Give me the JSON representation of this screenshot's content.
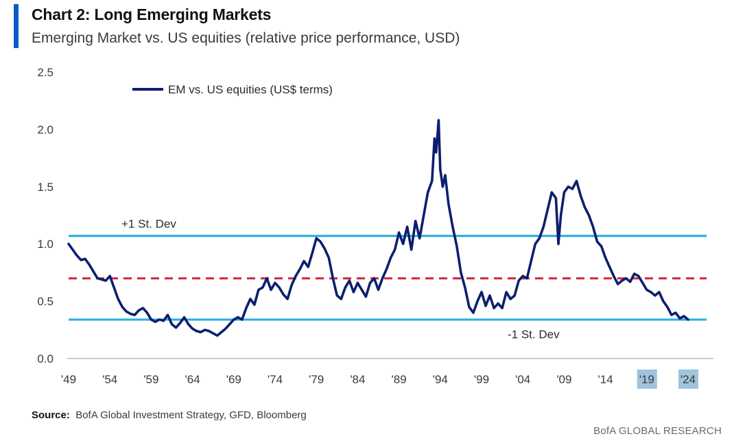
{
  "header": {
    "title": "Chart 2: Long Emerging Markets",
    "subtitle": "Emerging Market vs. US equities (relative price performance, USD)"
  },
  "footer": {
    "source_label": "Source:",
    "source_text": "BofA Global Investment Strategy, GFD, Bloomberg",
    "brand": "BofA GLOBAL RESEARCH"
  },
  "colors": {
    "series": "#0c1f6e",
    "std_dev": "#2eb0e6",
    "mean": "#d2223c",
    "axis": "#666666",
    "highlight": "#9fc4dc",
    "accent": "#0a5ac8"
  },
  "chart_data": {
    "type": "line",
    "title": "Chart 2: Long Emerging Markets",
    "subtitle": "Emerging Market vs. US equities (relative price performance, USD)",
    "xlabel": "",
    "ylabel": "",
    "xlim": [
      1949,
      2024
    ],
    "ylim": [
      0,
      2.5
    ],
    "yticks": [
      0.0,
      0.5,
      1.0,
      1.5,
      2.0,
      2.5
    ],
    "ytick_labels": [
      "0.0",
      "0.5",
      "1.0",
      "1.5",
      "2.0",
      "2.5"
    ],
    "xticks": [
      1949,
      1954,
      1959,
      1964,
      1969,
      1974,
      1979,
      1984,
      1989,
      1994,
      1999,
      2004,
      2009,
      2014,
      2019,
      2024
    ],
    "xtick_labels": [
      "'49",
      "'54",
      "'59",
      "'64",
      "'69",
      "'74",
      "'79",
      "'84",
      "'89",
      "'94",
      "'99",
      "'04",
      "'09",
      "'14",
      "'19",
      "'24"
    ],
    "highlighted_xticks": [
      "'19",
      "'24"
    ],
    "grid": false,
    "legend": {
      "position": "top-left",
      "entries": [
        "EM vs. US equities (US$ terms)"
      ]
    },
    "series": [
      {
        "name": "EM vs. US equities (US$ terms)",
        "x": [
          1949.0,
          1949.5,
          1950.0,
          1950.5,
          1951.0,
          1951.5,
          1952.0,
          1952.5,
          1953.0,
          1953.5,
          1954.0,
          1954.5,
          1955.0,
          1955.5,
          1956.0,
          1956.5,
          1957.0,
          1957.5,
          1958.0,
          1958.5,
          1959.0,
          1959.5,
          1960.0,
          1960.5,
          1961.0,
          1961.5,
          1962.0,
          1962.5,
          1963.0,
          1963.5,
          1964.0,
          1964.5,
          1965.0,
          1965.5,
          1966.0,
          1966.5,
          1967.0,
          1967.5,
          1968.0,
          1968.5,
          1969.0,
          1969.5,
          1970.0,
          1970.5,
          1971.0,
          1971.5,
          1972.0,
          1972.5,
          1973.0,
          1973.5,
          1974.0,
          1974.5,
          1975.0,
          1975.5,
          1976.0,
          1976.5,
          1977.0,
          1977.5,
          1978.0,
          1978.5,
          1979.0,
          1979.5,
          1980.0,
          1980.5,
          1981.0,
          1981.5,
          1982.0,
          1982.5,
          1983.0,
          1983.5,
          1984.0,
          1984.5,
          1985.0,
          1985.5,
          1986.0,
          1986.5,
          1987.0,
          1987.5,
          1988.0,
          1988.5,
          1989.0,
          1989.5,
          1990.0,
          1990.5,
          1991.0,
          1991.5,
          1992.0,
          1992.5,
          1993.0,
          1993.3,
          1993.5,
          1993.8,
          1994.0,
          1994.3,
          1994.6,
          1995.0,
          1995.5,
          1996.0,
          1996.5,
          1997.0,
          1997.5,
          1998.0,
          1998.5,
          1999.0,
          1999.5,
          2000.0,
          2000.5,
          2001.0,
          2001.5,
          2002.0,
          2002.5,
          2003.0,
          2003.5,
          2004.0,
          2004.5,
          2005.0,
          2005.5,
          2006.0,
          2006.5,
          2007.0,
          2007.5,
          2008.0,
          2008.3,
          2008.6,
          2009.0,
          2009.5,
          2010.0,
          2010.5,
          2011.0,
          2011.5,
          2012.0,
          2012.5,
          2013.0,
          2013.5,
          2014.0,
          2014.5,
          2015.0,
          2015.5,
          2016.0,
          2016.5,
          2017.0,
          2017.5,
          2018.0,
          2018.5,
          2019.0,
          2019.5,
          2020.0,
          2020.5,
          2021.0,
          2021.5,
          2022.0,
          2022.5,
          2023.0,
          2023.5,
          2024.0
        ],
        "values": [
          1.0,
          0.95,
          0.9,
          0.86,
          0.87,
          0.82,
          0.76,
          0.7,
          0.69,
          0.68,
          0.72,
          0.62,
          0.52,
          0.45,
          0.41,
          0.39,
          0.38,
          0.42,
          0.44,
          0.4,
          0.34,
          0.32,
          0.34,
          0.33,
          0.38,
          0.3,
          0.27,
          0.31,
          0.36,
          0.3,
          0.26,
          0.24,
          0.23,
          0.25,
          0.24,
          0.22,
          0.2,
          0.23,
          0.26,
          0.3,
          0.34,
          0.36,
          0.34,
          0.44,
          0.52,
          0.47,
          0.6,
          0.62,
          0.7,
          0.6,
          0.66,
          0.62,
          0.56,
          0.52,
          0.64,
          0.72,
          0.78,
          0.85,
          0.8,
          0.92,
          1.05,
          1.02,
          0.96,
          0.88,
          0.7,
          0.55,
          0.52,
          0.62,
          0.68,
          0.58,
          0.66,
          0.6,
          0.54,
          0.66,
          0.7,
          0.6,
          0.7,
          0.78,
          0.88,
          0.95,
          1.1,
          1.0,
          1.15,
          0.95,
          1.2,
          1.05,
          1.25,
          1.45,
          1.55,
          1.92,
          1.8,
          2.08,
          1.65,
          1.5,
          1.6,
          1.35,
          1.15,
          0.98,
          0.75,
          0.62,
          0.45,
          0.4,
          0.5,
          0.58,
          0.46,
          0.55,
          0.44,
          0.48,
          0.44,
          0.58,
          0.52,
          0.55,
          0.68,
          0.72,
          0.7,
          0.85,
          1.0,
          1.05,
          1.15,
          1.3,
          1.45,
          1.4,
          1.0,
          1.25,
          1.45,
          1.5,
          1.48,
          1.55,
          1.42,
          1.32,
          1.25,
          1.15,
          1.02,
          0.98,
          0.88,
          0.8,
          0.72,
          0.65,
          0.68,
          0.7,
          0.67,
          0.74,
          0.72,
          0.66,
          0.6,
          0.58,
          0.55,
          0.58,
          0.5,
          0.45,
          0.38,
          0.4,
          0.35,
          0.37,
          0.34
        ]
      }
    ],
    "reference_lines": [
      {
        "label": "+1 St. Dev",
        "value": 1.07,
        "style": "solid"
      },
      {
        "label": "",
        "value": 0.7,
        "style": "dashed"
      },
      {
        "label": "-1 St. Dev",
        "value": 0.34,
        "style": "solid"
      }
    ]
  }
}
